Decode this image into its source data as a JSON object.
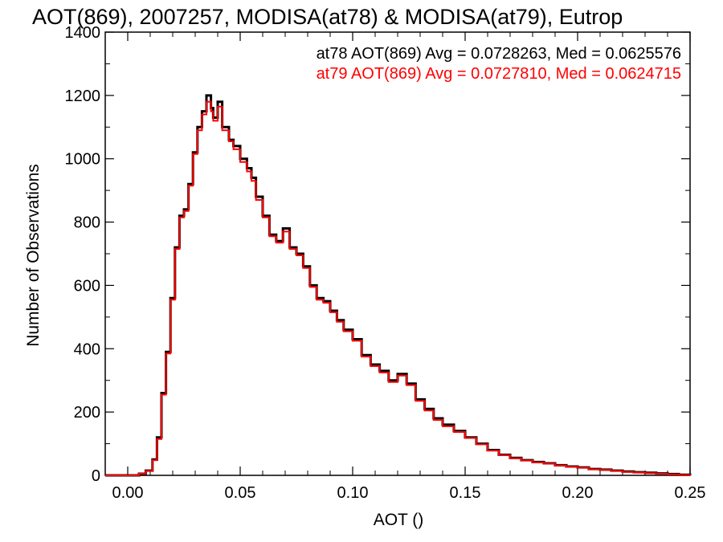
{
  "chart_data": {
    "type": "line",
    "title": "AOT(869), 2007257, MODISA(at78) & MODISA(at79), Eutrop",
    "xlabel": "AOT ()",
    "ylabel": "Number of Observations",
    "xlim": [
      -0.01,
      0.25
    ],
    "ylim": [
      0,
      1400
    ],
    "xticks": [
      "0.00",
      "0.05",
      "0.10",
      "0.15",
      "0.20",
      "0.25"
    ],
    "yticks": [
      "0",
      "200",
      "400",
      "600",
      "800",
      "1000",
      "1200",
      "1400"
    ],
    "grid": false,
    "legend_placement": "top-right",
    "annotations": [
      {
        "text": "at78 AOT(869) Avg = 0.0728263, Med = 0.0625576",
        "color": "#000000"
      },
      {
        "text": "at79 AOT(869) Avg = 0.0727810, Med = 0.0624715",
        "color": "#ff0000"
      }
    ],
    "series": [
      {
        "color": "#000000",
        "x": [
          -0.01,
          0.0,
          0.005,
          0.008,
          0.011,
          0.013,
          0.015,
          0.017,
          0.019,
          0.021,
          0.023,
          0.025,
          0.027,
          0.029,
          0.031,
          0.033,
          0.035,
          0.037,
          0.038,
          0.04,
          0.042,
          0.045,
          0.047,
          0.05,
          0.053,
          0.055,
          0.057,
          0.06,
          0.063,
          0.066,
          0.069,
          0.072,
          0.075,
          0.078,
          0.081,
          0.084,
          0.087,
          0.09,
          0.093,
          0.096,
          0.1,
          0.104,
          0.108,
          0.112,
          0.116,
          0.12,
          0.124,
          0.128,
          0.132,
          0.136,
          0.14,
          0.145,
          0.15,
          0.155,
          0.16,
          0.165,
          0.17,
          0.175,
          0.18,
          0.185,
          0.19,
          0.195,
          0.2,
          0.205,
          0.21,
          0.215,
          0.22,
          0.225,
          0.23,
          0.235,
          0.24,
          0.245,
          0.25
        ],
        "y": [
          0,
          0,
          5,
          15,
          50,
          120,
          260,
          390,
          560,
          720,
          820,
          840,
          920,
          1020,
          1100,
          1150,
          1200,
          1160,
          1130,
          1180,
          1100,
          1060,
          1040,
          1000,
          970,
          940,
          880,
          820,
          760,
          740,
          780,
          720,
          700,
          660,
          600,
          560,
          550,
          520,
          490,
          460,
          430,
          380,
          350,
          330,
          300,
          320,
          290,
          240,
          210,
          180,
          160,
          140,
          120,
          100,
          80,
          65,
          55,
          48,
          42,
          38,
          32,
          28,
          25,
          20,
          18,
          15,
          12,
          10,
          8,
          6,
          4,
          2,
          0
        ]
      },
      {
        "color": "#ff0000",
        "x": [
          -0.01,
          0.0,
          0.005,
          0.008,
          0.011,
          0.013,
          0.015,
          0.017,
          0.019,
          0.021,
          0.023,
          0.025,
          0.027,
          0.029,
          0.031,
          0.033,
          0.035,
          0.037,
          0.038,
          0.04,
          0.042,
          0.045,
          0.047,
          0.05,
          0.053,
          0.055,
          0.057,
          0.06,
          0.063,
          0.066,
          0.069,
          0.072,
          0.075,
          0.078,
          0.081,
          0.084,
          0.087,
          0.09,
          0.093,
          0.096,
          0.1,
          0.104,
          0.108,
          0.112,
          0.116,
          0.12,
          0.124,
          0.128,
          0.132,
          0.136,
          0.14,
          0.145,
          0.15,
          0.155,
          0.16,
          0.165,
          0.17,
          0.175,
          0.18,
          0.185,
          0.19,
          0.195,
          0.2,
          0.205,
          0.21,
          0.215,
          0.22,
          0.225,
          0.23,
          0.235,
          0.24,
          0.245,
          0.25
        ],
        "y": [
          0,
          0,
          5,
          14,
          48,
          115,
          255,
          385,
          555,
          715,
          815,
          835,
          915,
          1015,
          1090,
          1140,
          1180,
          1150,
          1120,
          1165,
          1090,
          1055,
          1030,
          990,
          960,
          930,
          870,
          815,
          755,
          735,
          770,
          715,
          695,
          655,
          595,
          555,
          545,
          515,
          485,
          455,
          425,
          375,
          345,
          325,
          295,
          315,
          285,
          235,
          205,
          175,
          155,
          137,
          118,
          98,
          78,
          64,
          54,
          47,
          41,
          37,
          31,
          27,
          24,
          19,
          17,
          14,
          11,
          9,
          7,
          5,
          3,
          1,
          0
        ]
      }
    ]
  }
}
